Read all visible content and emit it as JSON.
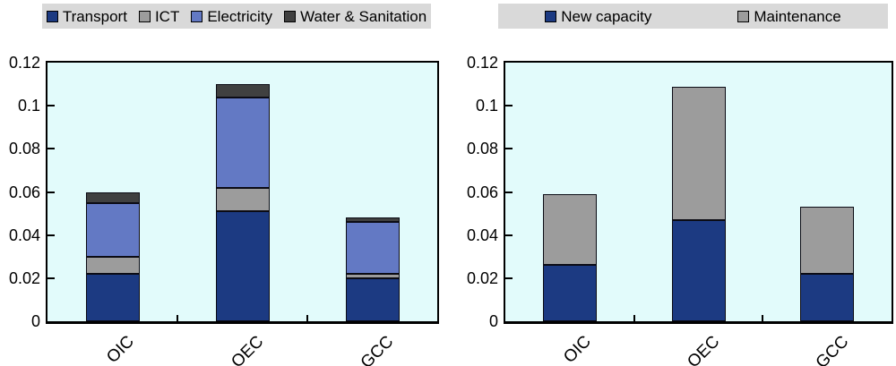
{
  "figure": {
    "background": "#FFFFFF",
    "plot_background": "#E2FBFB",
    "legend_background": "#D9D9D9",
    "axis_color": "#000000"
  },
  "chart_data": [
    {
      "type": "bar",
      "stacked": true,
      "title": "",
      "categories": [
        "OIC",
        "OEC",
        "GCC"
      ],
      "series": [
        {
          "name": "Transport",
          "color": "#1C3A82",
          "values": [
            0.022,
            0.051,
            0.02
          ]
        },
        {
          "name": "ICT",
          "color": "#9C9C9C",
          "values": [
            0.008,
            0.011,
            0.002
          ]
        },
        {
          "name": "Electricity",
          "color": "#6379C4",
          "values": [
            0.025,
            0.042,
            0.024
          ]
        },
        {
          "name": "Water & Sanitation",
          "color": "#404040",
          "values": [
            0.005,
            0.006,
            0.002
          ]
        }
      ],
      "ylim": [
        0,
        0.12
      ],
      "ytick_values": [
        0,
        0.02,
        0.04,
        0.06,
        0.08,
        0.1,
        0.12
      ],
      "ytick_labels": [
        "0",
        "0.02",
        "0.04",
        "0.06",
        "0.08",
        "0.1",
        "0.12"
      ],
      "legend_position": "top",
      "grid": false
    },
    {
      "type": "bar",
      "stacked": true,
      "title": "",
      "categories": [
        "OIC",
        "OEC",
        "GCC"
      ],
      "series": [
        {
          "name": "New capacity",
          "color": "#1C3A82",
          "values": [
            0.026,
            0.047,
            0.022
          ]
        },
        {
          "name": "Maintenance",
          "color": "#9C9C9C",
          "values": [
            0.033,
            0.062,
            0.031
          ]
        }
      ],
      "ylim": [
        0,
        0.12
      ],
      "ytick_values": [
        0,
        0.02,
        0.04,
        0.06,
        0.08,
        0.1,
        0.12
      ],
      "ytick_labels": [
        "0",
        "0.02",
        "0.04",
        "0.06",
        "0.08",
        "0.1",
        "0.12"
      ],
      "legend_position": "top",
      "grid": false
    }
  ]
}
